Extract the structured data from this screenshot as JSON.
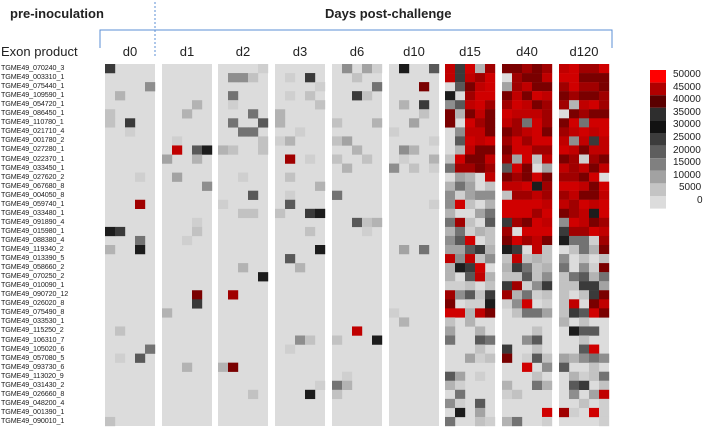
{
  "header": {
    "pre_label": "pre-inoculation",
    "post_label": "Days post-challenge",
    "row_axis_label": "Exon product"
  },
  "chart_data": {
    "type": "heatmap",
    "title": "",
    "columns_groups": [
      "d0",
      "d1",
      "d2",
      "d3",
      "d6",
      "d10",
      "d15",
      "d40",
      "d120"
    ],
    "rows": [
      "TGME49_070240_3",
      "TGME49_003310_1",
      "TGME49_075440_1",
      "TGME49_109590_1",
      "TGME49_054720_1",
      "TGME49_086450_1",
      "TGME49_110780_1",
      "TGME49_021710_4",
      "TGME49_001780_2",
      "TGME49_027280_1",
      "TGME49_022370_1",
      "TGME49_033450_1",
      "TGME49_027620_2",
      "TGME49_067680_8",
      "TGME49_004050_8",
      "TGME49_059740_1",
      "TGME49_033480_1",
      "TGME49_091890_4",
      "TGME49_015980_1",
      "TGME49_088380_4",
      "TGME49_119340_2",
      "TGME49_013390_5",
      "TGME49_058660_2",
      "TGME49_070250_2",
      "TGME49_010090_1",
      "TGME49_090720_12",
      "TGME49_026020_8",
      "TGME49_075490_8",
      "TGME49_033530_1",
      "TGME49_115250_2",
      "TGME49_106310_7",
      "TGME49_105020_6",
      "TGME49_057080_5",
      "TGME49_093730_6",
      "TGME49_113020_9",
      "TGME49_031430_2",
      "TGME49_026660_8",
      "TGME49_048200_4",
      "TGME49_001390_1",
      "TGME49_090010_1"
    ],
    "sub_columns_per_group": 5,
    "legend": {
      "placement": "right",
      "ticks": [
        "50000",
        "45000",
        "40000",
        "35000",
        "30000",
        "25000",
        "20000",
        "15000",
        "10000",
        "5000",
        "0"
      ],
      "colors": [
        "#ff0000",
        "#b00000",
        "#5a0000",
        "#2e2e2e",
        "#121212",
        "#3c3c3c",
        "#5e5e5e",
        "#808080",
        "#a2a2a2",
        "#c4c4c4",
        "#dcdcdc"
      ]
    },
    "background_color": "#dcdcdc"
  }
}
